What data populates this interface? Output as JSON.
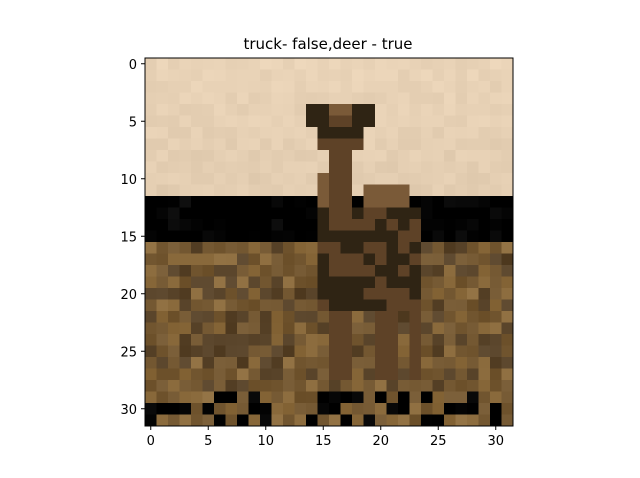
{
  "chart_data": {
    "type": "heatmap",
    "title": "truck- false,deer - true",
    "xlabel": "",
    "ylabel": "",
    "xlim": [
      -0.5,
      31.5
    ],
    "ylim": [
      31.5,
      -0.5
    ],
    "x_ticks": [
      0,
      5,
      10,
      15,
      20,
      25,
      30
    ],
    "y_ticks": [
      0,
      5,
      10,
      15,
      20,
      25,
      30
    ],
    "grid": false,
    "image": {
      "width": 32,
      "height": 32,
      "content": "deer standing in brown grassland under a pale sky",
      "colors": {
        "sky": "#e6d0b4",
        "horizon_grey": "#9aa49a",
        "grass_dark": "#574228",
        "grass": "#735731",
        "grass_light": "#8a6a3c",
        "deer": "#5e4227",
        "deer_dark": "#2f2414",
        "deer_mid": "#7a5a38"
      }
    }
  }
}
